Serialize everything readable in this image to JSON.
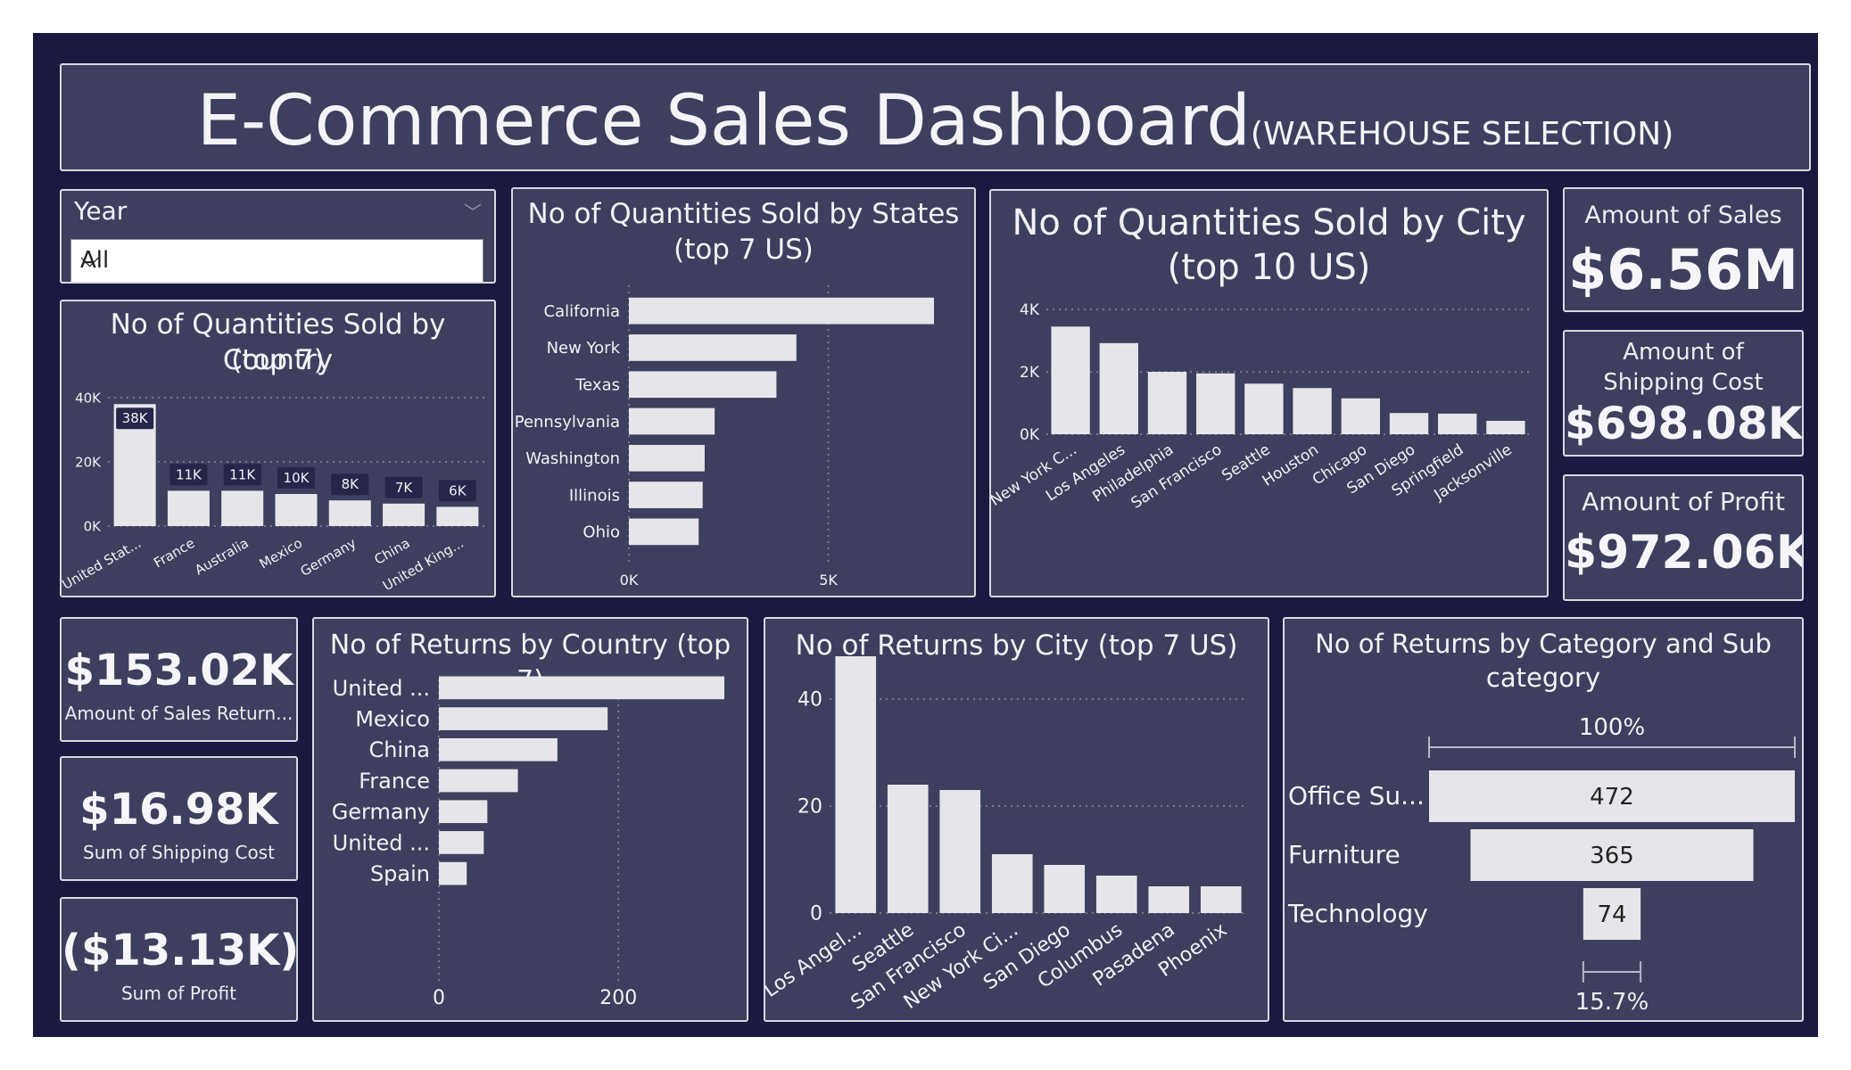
{
  "title": {
    "main": "E-Commerce Sales Dashboard",
    "sub": "(WAREHOUSE SELECTION)"
  },
  "slicer": {
    "label": "Year",
    "value": "All"
  },
  "kpis": {
    "sales": {
      "label": "Amount of Sales",
      "value": "$6.56M"
    },
    "shipping": {
      "label": "Amount of Shipping Cost",
      "value": "$698.08K"
    },
    "profit": {
      "label": "Amount of Profit",
      "value": "$972.06K"
    },
    "sales_return": {
      "label": "Amount of Sales Return...",
      "value": "$153.02K"
    },
    "sum_shipping": {
      "label": "Sum of Shipping Cost",
      "value": "$16.98K"
    },
    "sum_profit": {
      "label": "Sum of Profit",
      "value": "($13.13K)"
    }
  },
  "chart_data": [
    {
      "id": "country",
      "type": "bar",
      "title_line1": "No of Quantities Sold by Country",
      "title_line2": "(top 7)",
      "categories": [
        "United Stat...",
        "France",
        "Australia",
        "Mexico",
        "Germany",
        "China",
        "United King..."
      ],
      "values": [
        38000,
        11000,
        11000,
        10000,
        8000,
        7000,
        6000
      ],
      "data_labels": [
        "38K",
        "11K",
        "11K",
        "10K",
        "8K",
        "7K",
        "6K"
      ],
      "ylim": [
        0,
        40000
      ],
      "yticks": [
        0,
        20000,
        40000
      ],
      "ytick_labels": [
        "0K",
        "20K",
        "40K"
      ],
      "grid": true
    },
    {
      "id": "states",
      "type": "bar",
      "orientation": "horizontal",
      "title_line1": "No of Quantities Sold by States",
      "title_line2": "(top 7 US)",
      "categories": [
        "California",
        "New York",
        "Texas",
        "Pennsylvania",
        "Washington",
        "Illinois",
        "Ohio"
      ],
      "values": [
        7650,
        4200,
        3700,
        2150,
        1900,
        1850,
        1750
      ],
      "xlim": [
        0,
        7650
      ],
      "xticks": [
        0,
        5000
      ],
      "xtick_labels": [
        "0K",
        "5K"
      ],
      "grid": true
    },
    {
      "id": "city",
      "type": "bar",
      "title_line1": "No of Quantities Sold by City",
      "title_line2": "(top 10 US)",
      "categories": [
        "New York C...",
        "Los Angeles",
        "Philadelphia",
        "San Francisco",
        "Seattle",
        "Houston",
        "Chicago",
        "San Diego",
        "Springfield",
        "Jacksonville"
      ],
      "values": [
        3450,
        2920,
        2000,
        1950,
        1620,
        1480,
        1150,
        680,
        660,
        430
      ],
      "ylim": [
        0,
        4000
      ],
      "yticks": [
        0,
        2000,
        4000
      ],
      "ytick_labels": [
        "0K",
        "2K",
        "4K"
      ],
      "grid": true
    },
    {
      "id": "returns_country",
      "type": "bar",
      "orientation": "horizontal",
      "title_line1": "No of Returns by Country (top 7)",
      "categories": [
        "United ...",
        "Mexico",
        "China",
        "France",
        "Germany",
        "United ...",
        "Spain"
      ],
      "values": [
        318,
        188,
        132,
        88,
        54,
        50,
        31
      ],
      "xlim": [
        0,
        318
      ],
      "xticks": [
        0,
        200
      ],
      "xtick_labels": [
        "0",
        "200"
      ],
      "grid": true
    },
    {
      "id": "returns_city",
      "type": "bar",
      "title_line1": "No of Returns by City (top 7 US)",
      "categories": [
        "Los Angel...",
        "Seattle",
        "San Francisco",
        "New York Ci...",
        "San Diego",
        "Columbus",
        "Pasadena",
        "Phoenix"
      ],
      "values": [
        48,
        24,
        23,
        11,
        9,
        7,
        5,
        5
      ],
      "ylim": [
        0,
        50
      ],
      "yticks": [
        0,
        20,
        40
      ],
      "ytick_labels": [
        "0",
        "20",
        "40"
      ],
      "grid": true
    },
    {
      "id": "returns_category",
      "type": "bar",
      "orientation": "funnel",
      "title_line1": "No of Returns by Category and Sub",
      "title_line2": "category",
      "categories": [
        "Office Su...",
        "Furniture",
        "Technology"
      ],
      "values": [
        472,
        365,
        74
      ],
      "data_labels": [
        "472",
        "365",
        "74"
      ],
      "top_label": "100%",
      "bottom_label": "15.7%"
    }
  ],
  "colors": {
    "background": "#1a1a40",
    "panel": "#3e3e5e",
    "bar": "#e6e6ea",
    "grid": "#8a8aa6",
    "text": "#f2f2f6"
  }
}
